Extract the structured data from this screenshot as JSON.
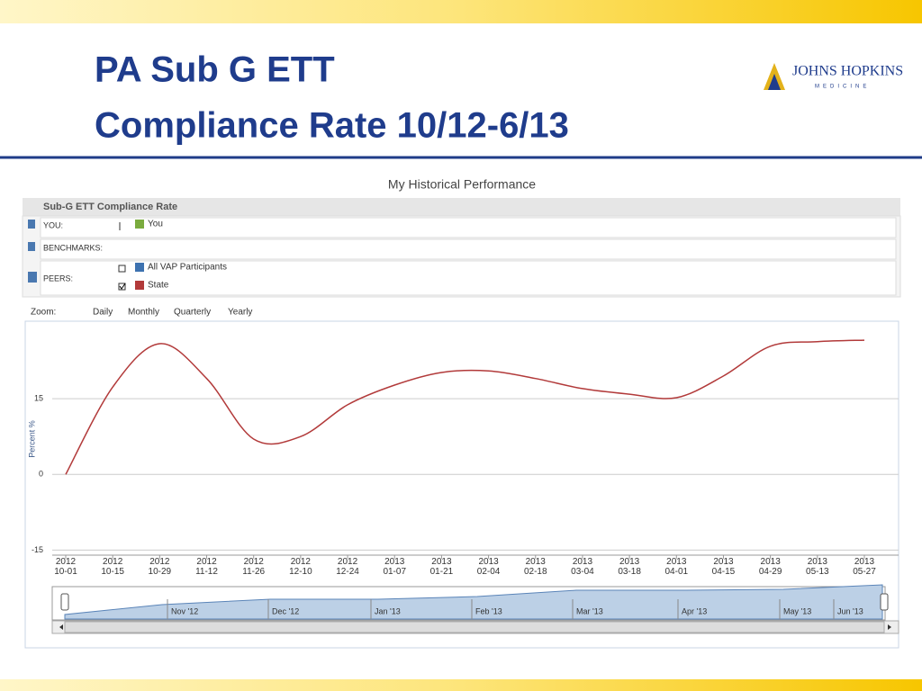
{
  "header": {
    "title_line1": "PA Sub G ETT",
    "title_line2": "Compliance Rate 10/12-6/13",
    "logo_name": "JOHNS HOPKINS",
    "logo_sub": "MEDICINE"
  },
  "panel": {
    "heading": "My Historical Performance",
    "title": "Sub-G ETT Compliance Rate",
    "you_label": "YOU:",
    "you_items": [
      {
        "name": "You",
        "color": "#7aab3e"
      }
    ],
    "benchmarks_label": "BENCHMARKS:",
    "peers_label": "PEERS:",
    "peers_items": [
      {
        "name": "All VAP Participants",
        "color": "#3d72b0"
      }
    ],
    "zoom_label": "Zoom:",
    "zoom_options": [
      "Daily",
      "Monthly",
      "Quarterly",
      "Yearly"
    ]
  },
  "navigator": {
    "labels": [
      "Nov '12",
      "Dec '12",
      "Jan '13",
      "Feb '13",
      "Mar '13",
      "Apr '13",
      "May '13",
      "Jun '13"
    ]
  },
  "chart_data": {
    "type": "line",
    "y_label": "Percent %",
    "categories": [
      "2012 10-01",
      "2012 10-15",
      "2012 10-29",
      "2012 11-12",
      "2012 11-26",
      "2012 12-10",
      "2012 12-24",
      "2013 01-07",
      "2013 01-21",
      "2013 02-04",
      "2013 02-18",
      "2013 03-04",
      "2013 03-18",
      "2013 04-01",
      "2013 04-15",
      "2013 04-29",
      "2013 05-13",
      "2013 05-27"
    ],
    "series": [
      {
        "name": "State",
        "color": "#b23a3a",
        "values": [
          0,
          17.3,
          25.9,
          19,
          7,
          7.5,
          13.8,
          17.7,
          20.2,
          20.5,
          19,
          17,
          15.9,
          15.2,
          19.5,
          25.4,
          26.3,
          26.6
        ]
      }
    ],
    "ylim": [
      -16,
      30
    ],
    "yticks": [
      -15,
      0,
      15
    ],
    "grid": true
  }
}
